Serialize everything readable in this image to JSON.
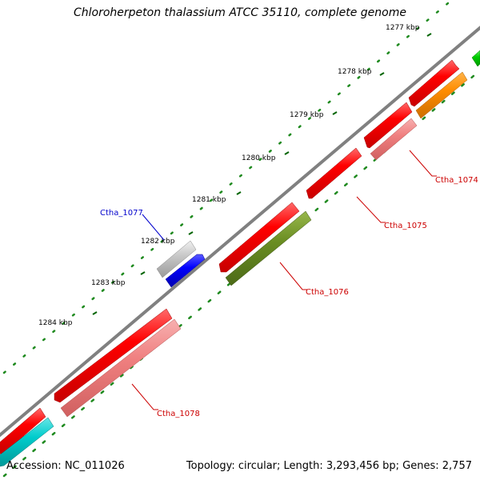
{
  "title": "Chloroherpeton thalassium ATCC 35110, complete genome",
  "footer": {
    "accession": "Accession: NC_011026",
    "summary": "Topology: circular; Length: 3,293,456 bp; Genes: 2,757"
  },
  "scale_labels": [
    "1277 kbp",
    "1278 kbp",
    "1279 kbp",
    "1280 kbp",
    "1281 kbp",
    "1282 kbp",
    "1283 kbp",
    "1284 kbp"
  ],
  "gene_labels": [
    "Ctha_1074",
    "Ctha_1075",
    "Ctha_1076",
    "Ctha_1077",
    "Ctha_1078"
  ],
  "colors": {
    "cds_red": "#ff0000",
    "light_red": "#f08080",
    "olive": "#6b8e23",
    "orange": "#ff8c00",
    "green": "#00cc00",
    "blue": "#0000ff",
    "grey": "#c0c0c0",
    "cyan": "#00cccc",
    "backbone": "#808080",
    "tick": "#006400",
    "label_red": "#cc0000",
    "label_blue": "#0000cc"
  }
}
